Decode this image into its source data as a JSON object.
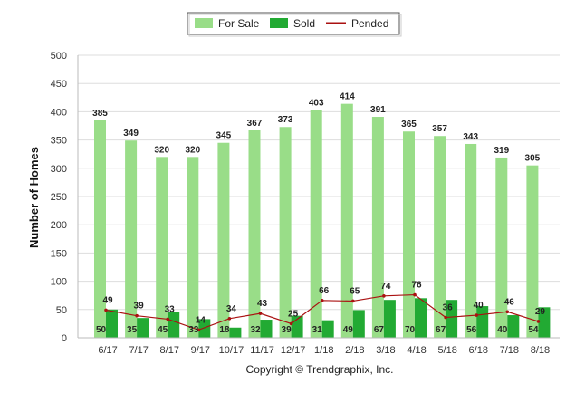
{
  "chart_data": {
    "type": "bar",
    "categories": [
      "6/17",
      "7/17",
      "8/17",
      "9/17",
      "10/17",
      "11/17",
      "12/17",
      "1/18",
      "2/18",
      "3/18",
      "4/18",
      "5/18",
      "6/18",
      "7/18",
      "8/18"
    ],
    "series": [
      {
        "name": "For Sale",
        "type": "bar",
        "color": "#99dd88",
        "values": [
          385,
          349,
          320,
          320,
          345,
          367,
          373,
          403,
          414,
          391,
          365,
          357,
          343,
          319,
          305
        ]
      },
      {
        "name": "Sold",
        "type": "bar",
        "color": "#22aa33",
        "values": [
          50,
          35,
          45,
          33,
          18,
          32,
          39,
          31,
          49,
          67,
          70,
          67,
          56,
          40,
          54
        ]
      },
      {
        "name": "Pended",
        "type": "line",
        "color": "#aa1111",
        "values": [
          49,
          39,
          33,
          14,
          34,
          43,
          25,
          66,
          65,
          74,
          76,
          36,
          40,
          46,
          29
        ]
      }
    ],
    "ylabel": "Number of Homes",
    "xlabel": "",
    "ylim": [
      0,
      500
    ],
    "yticks": [
      0,
      50,
      100,
      150,
      200,
      250,
      300,
      350,
      400,
      450,
      500
    ],
    "grid": true,
    "legend": "top-center"
  },
  "footer": {
    "copyright": "Copyright © Trendgraphix, Inc."
  }
}
